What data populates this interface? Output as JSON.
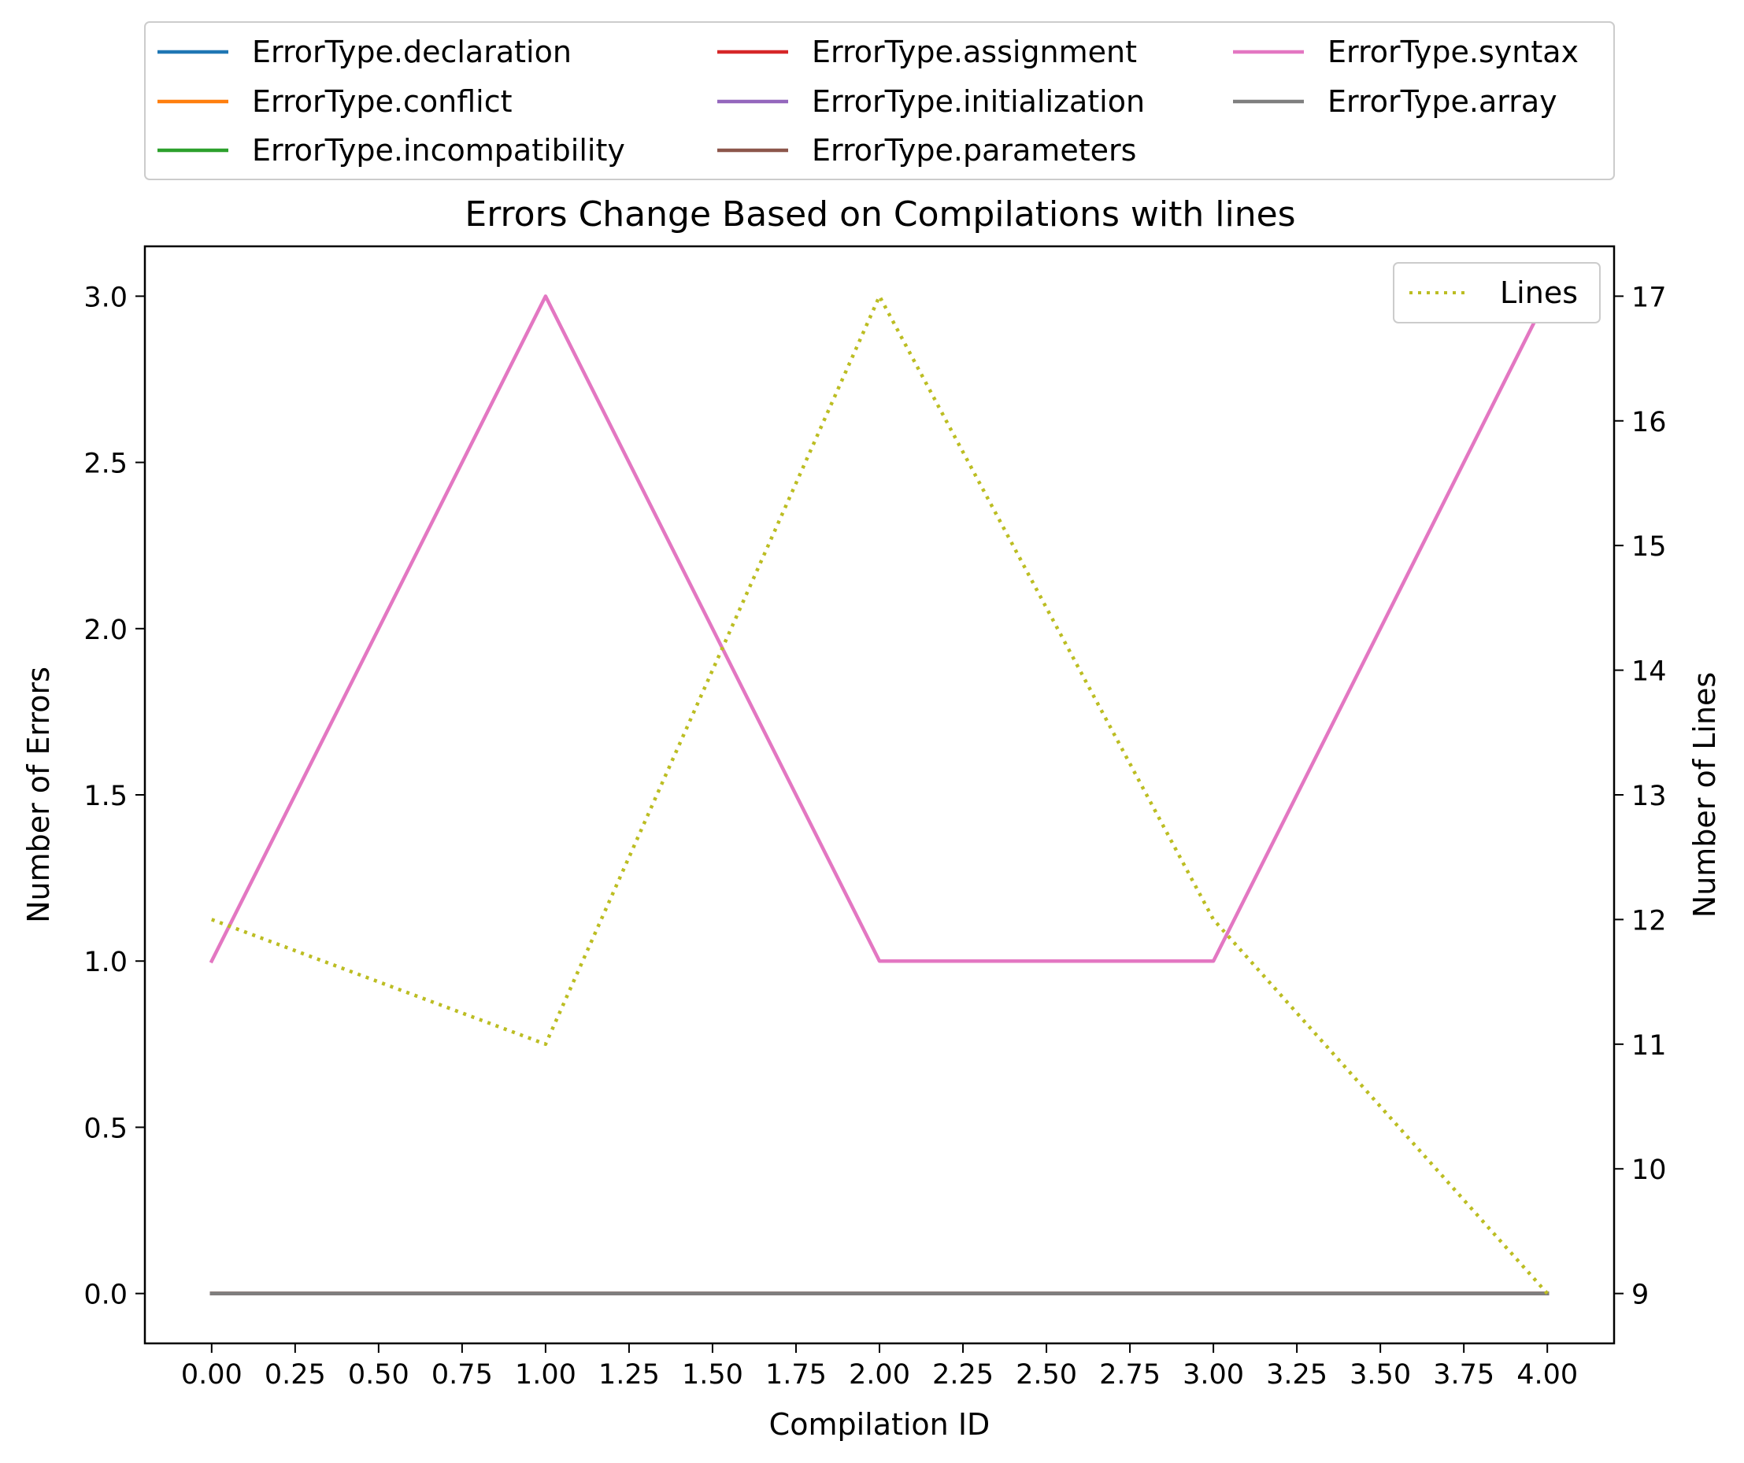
{
  "chart_data": {
    "type": "line",
    "title": "Errors Change Based on Compilations with lines",
    "xlabel": "Compilation ID",
    "ylabel": "Number of Errors",
    "y2label": "Number of Lines",
    "xlim": [
      -0.2,
      4.2
    ],
    "ylim": [
      -0.15,
      3.15
    ],
    "y2lim": [
      8.6,
      17.4
    ],
    "xticks": [
      0,
      0.25,
      0.5,
      0.75,
      1,
      1.25,
      1.5,
      1.75,
      2,
      2.25,
      2.5,
      2.75,
      3,
      3.25,
      3.5,
      3.75,
      4
    ],
    "xtick_labels": [
      "0.00",
      "0.25",
      "0.50",
      "0.75",
      "1.00",
      "1.25",
      "1.50",
      "1.75",
      "2.00",
      "2.25",
      "2.50",
      "2.75",
      "3.00",
      "3.25",
      "3.50",
      "3.75",
      "4.00"
    ],
    "yticks": [
      0,
      0.5,
      1,
      1.5,
      2,
      2.5,
      3
    ],
    "ytick_labels": [
      "0.0",
      "0.5",
      "1.0",
      "1.5",
      "2.0",
      "2.5",
      "3.0"
    ],
    "y2ticks": [
      9,
      10,
      11,
      12,
      13,
      14,
      15,
      16,
      17
    ],
    "y2tick_labels": [
      "9",
      "10",
      "11",
      "12",
      "13",
      "14",
      "15",
      "16",
      "17"
    ],
    "x": [
      0,
      1,
      2,
      3,
      4
    ],
    "series": [
      {
        "name": "ErrorType.declaration",
        "color": "#1f77b4",
        "values": [
          0,
          0,
          0,
          0,
          0
        ]
      },
      {
        "name": "ErrorType.conflict",
        "color": "#ff7f0e",
        "values": [
          0,
          0,
          0,
          0,
          0
        ]
      },
      {
        "name": "ErrorType.incompatibility",
        "color": "#2ca02c",
        "values": [
          0,
          0,
          0,
          0,
          0
        ]
      },
      {
        "name": "ErrorType.assignment",
        "color": "#d62728",
        "values": [
          0,
          0,
          0,
          0,
          0
        ]
      },
      {
        "name": "ErrorType.initialization",
        "color": "#9467bd",
        "values": [
          0,
          0,
          0,
          0,
          0
        ]
      },
      {
        "name": "ErrorType.parameters",
        "color": "#8c564b",
        "values": [
          0,
          0,
          0,
          0,
          0
        ]
      },
      {
        "name": "ErrorType.syntax",
        "color": "#e377c2",
        "values": [
          1,
          3,
          1,
          1,
          3
        ]
      },
      {
        "name": "ErrorType.array",
        "color": "#7f7f7f",
        "values": [
          0,
          0,
          0,
          0,
          0
        ]
      }
    ],
    "secondary_series": {
      "name": "Lines",
      "color": "#bcbd22",
      "style": "dotted",
      "values": [
        12,
        11,
        17,
        12,
        9
      ]
    },
    "legend_placement": "above plot, 3 columns",
    "secondary_legend_placement": "top-right",
    "grid": false
  }
}
